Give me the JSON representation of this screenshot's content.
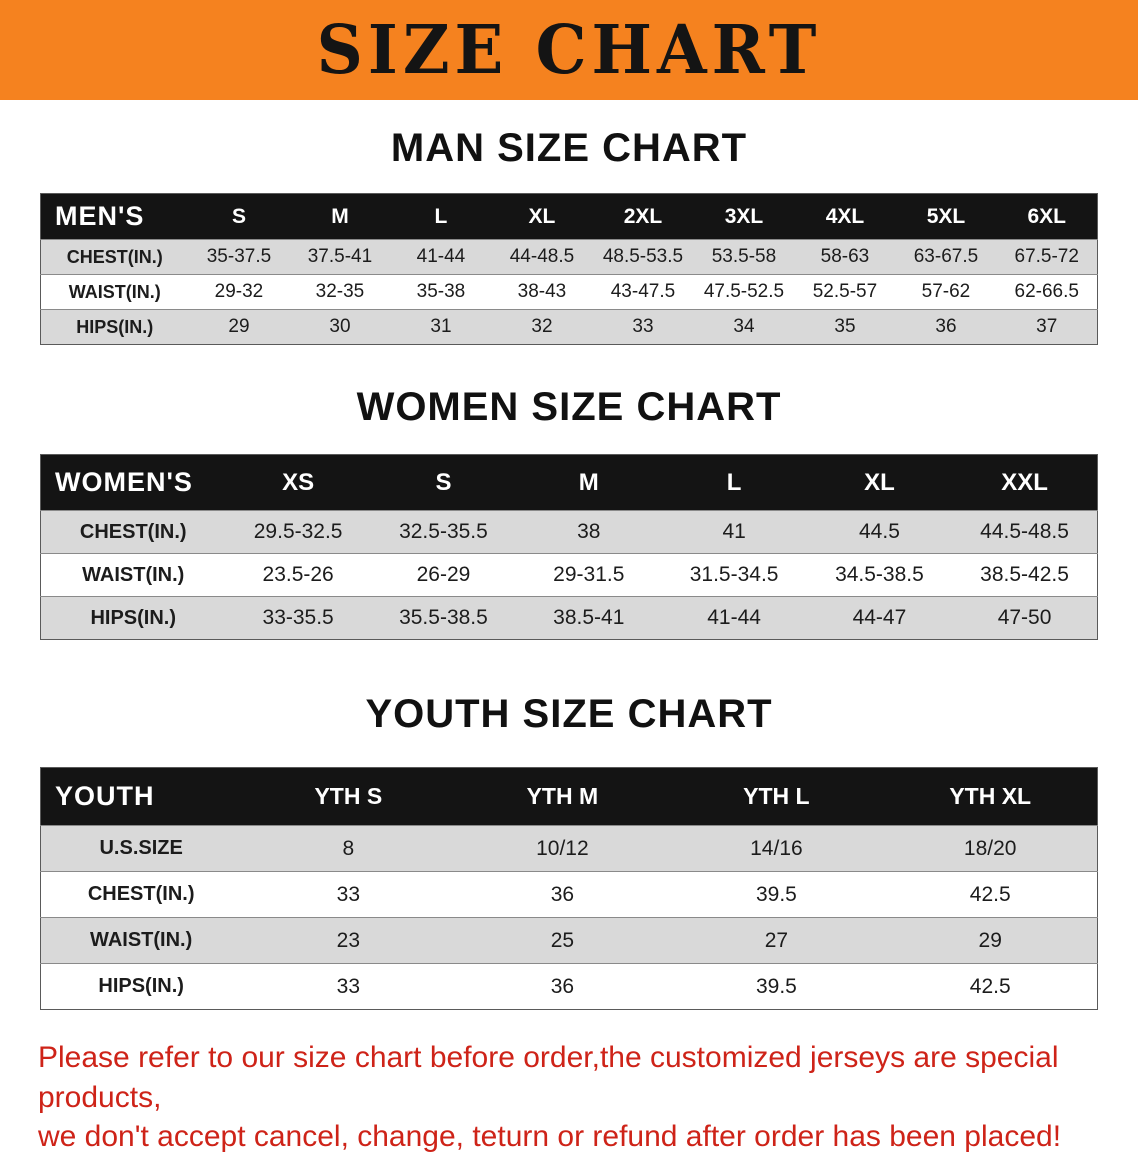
{
  "banner": {
    "title": "SIZE CHART",
    "bg_color": "#F5821F",
    "text_color": "#141414"
  },
  "sections": [
    {
      "heading": "MAN SIZE CHART",
      "table": {
        "label": "MEN'S",
        "columns": [
          "S",
          "M",
          "L",
          "XL",
          "2XL",
          "3XL",
          "4XL",
          "5XL",
          "6XL"
        ],
        "rows": [
          {
            "label": "CHEST(IN.)",
            "values": [
              "35-37.5",
              "37.5-41",
              "41-44",
              "44-48.5",
              "48.5-53.5",
              "53.5-58",
              "58-63",
              "63-67.5",
              "67.5-72"
            ]
          },
          {
            "label": "WAIST(IN.)",
            "values": [
              "29-32",
              "32-35",
              "35-38",
              "38-43",
              "43-47.5",
              "47.5-52.5",
              "52.5-57",
              "57-62",
              "62-66.5"
            ]
          },
          {
            "label": "HIPS(IN.)",
            "values": [
              "29",
              "30",
              "31",
              "32",
              "33",
              "34",
              "35",
              "36",
              "37"
            ]
          }
        ]
      }
    },
    {
      "heading": "WOMEN SIZE CHART",
      "table": {
        "label": "WOMEN'S",
        "columns": [
          "XS",
          "S",
          "M",
          "L",
          "XL",
          "XXL"
        ],
        "rows": [
          {
            "label": "CHEST(IN.)",
            "values": [
              "29.5-32.5",
              "32.5-35.5",
              "38",
              "41",
              "44.5",
              "44.5-48.5"
            ]
          },
          {
            "label": "WAIST(IN.)",
            "values": [
              "23.5-26",
              "26-29",
              "29-31.5",
              "31.5-34.5",
              "34.5-38.5",
              "38.5-42.5"
            ]
          },
          {
            "label": "HIPS(IN.)",
            "values": [
              "33-35.5",
              "35.5-38.5",
              "38.5-41",
              "41-44",
              "44-47",
              "47-50"
            ]
          }
        ]
      }
    },
    {
      "heading": "YOUTH SIZE CHART",
      "table": {
        "label": "YOUTH",
        "columns": [
          "YTH S",
          "YTH M",
          "YTH L",
          "YTH XL"
        ],
        "rows": [
          {
            "label": "U.S.SIZE",
            "values": [
              "8",
              "10/12",
              "14/16",
              "18/20"
            ]
          },
          {
            "label": "CHEST(IN.)",
            "values": [
              "33",
              "36",
              "39.5",
              "42.5"
            ]
          },
          {
            "label": "WAIST(IN.)",
            "values": [
              "23",
              "25",
              "27",
              "29"
            ]
          },
          {
            "label": "HIPS(IN.)",
            "values": [
              "33",
              "36",
              "39.5",
              "42.5"
            ]
          }
        ]
      }
    }
  ],
  "footer": {
    "line1": "Please refer to our size chart before order,the customized jerseys are special products,",
    "line2": "we don't accept cancel, change, teturn or refund after order has been placed!",
    "text_color": "#CE2318"
  }
}
